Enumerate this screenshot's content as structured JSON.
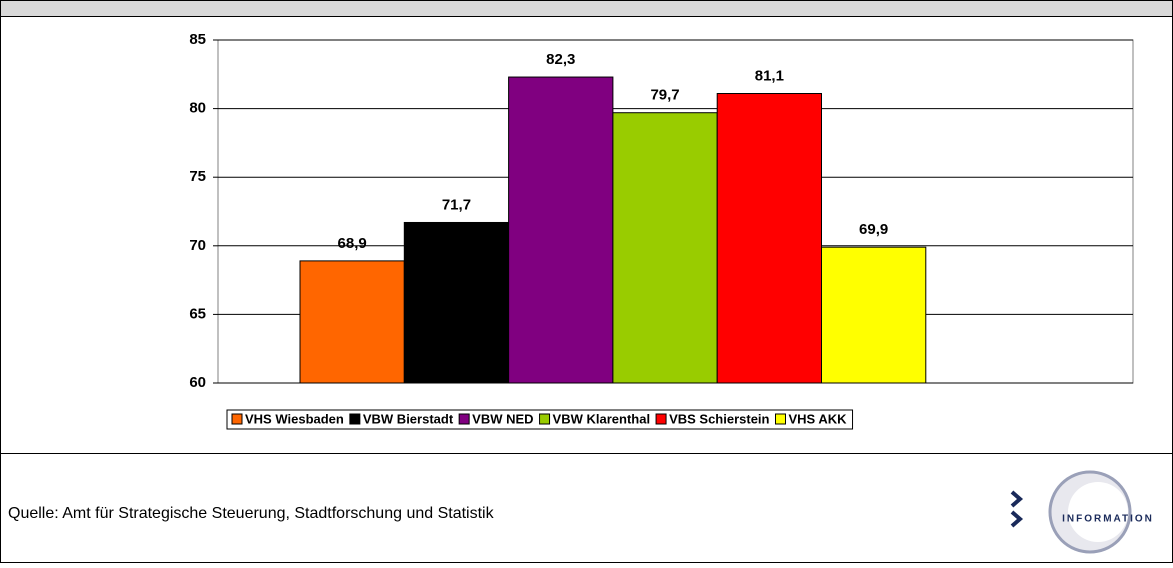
{
  "chart_data": {
    "type": "bar",
    "categories": [
      null
    ],
    "series": [
      {
        "name": "VHS Wiesbaden",
        "color": "#ff6600",
        "values": [
          68.9
        ],
        "value_labels": [
          "68,9"
        ]
      },
      {
        "name": "VBW Bierstadt",
        "color": "#000000",
        "values": [
          71.7
        ],
        "value_labels": [
          "71,7"
        ]
      },
      {
        "name": "VBW NED",
        "color": "#800080",
        "values": [
          82.3
        ],
        "value_labels": [
          "82,3"
        ]
      },
      {
        "name": "VBW Klarenthal",
        "color": "#99cc00",
        "values": [
          79.7
        ],
        "value_labels": [
          "79,7"
        ]
      },
      {
        "name": "VBS Schierstein",
        "color": "#ff0000",
        "values": [
          81.1
        ],
        "value_labels": [
          "81,1"
        ]
      },
      {
        "name": "VHS AKK",
        "color": "#ffff00",
        "values": [
          69.9
        ],
        "value_labels": [
          "69,9"
        ]
      }
    ],
    "ylim": [
      60,
      85
    ],
    "yticks": [
      60,
      65,
      70,
      75,
      80,
      85
    ],
    "grid": true,
    "legend": "bottom"
  },
  "source": "Quelle: Amt für Strategische Steuerung, Stadtforschung und Statistik",
  "logo": "INFORMATION"
}
